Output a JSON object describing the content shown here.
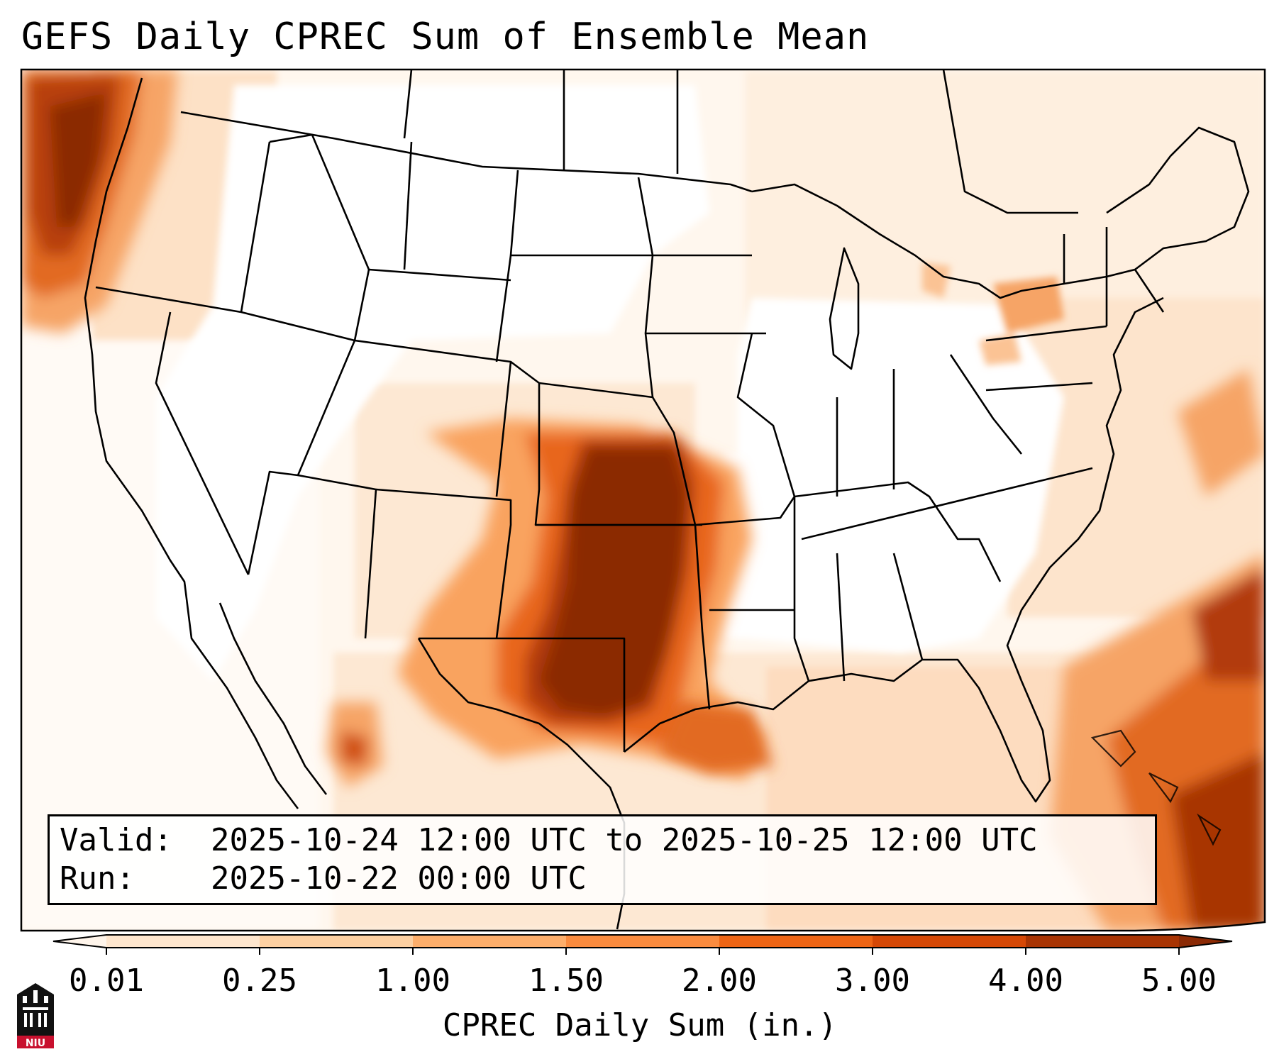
{
  "title": "GEFS Daily CPREC Sum of Ensemble Mean",
  "map": {
    "type": "filled-contour-map",
    "region": "CONUS",
    "variable": "CPREC",
    "units": "in.",
    "colors": {
      "low": "#fef0e2",
      "mid": "#f8a865",
      "high": "#e0560f",
      "max": "#8b2a05",
      "boundary": "#000000"
    }
  },
  "valid": {
    "label": "Valid:",
    "value": "2025-10-24 12:00 UTC to 2025-10-25 12:00 UTC"
  },
  "run": {
    "label": "Run:",
    "value": "2025-10-22 00:00 UTC"
  },
  "colorbar": {
    "label": "CPREC Daily Sum (in.)",
    "ticks": [
      "0.01",
      "0.25",
      "1.00",
      "1.50",
      "2.00",
      "3.00",
      "4.00",
      "5.00"
    ],
    "colors": [
      "#fff5eb",
      "#fee6ce",
      "#fdd0a2",
      "#fdae6b",
      "#f98b3f",
      "#ee6515",
      "#d54806",
      "#a83403",
      "#8b2a05"
    ],
    "extend": "both"
  },
  "logo": {
    "text": "NIU",
    "icon": "university-building-logo"
  }
}
